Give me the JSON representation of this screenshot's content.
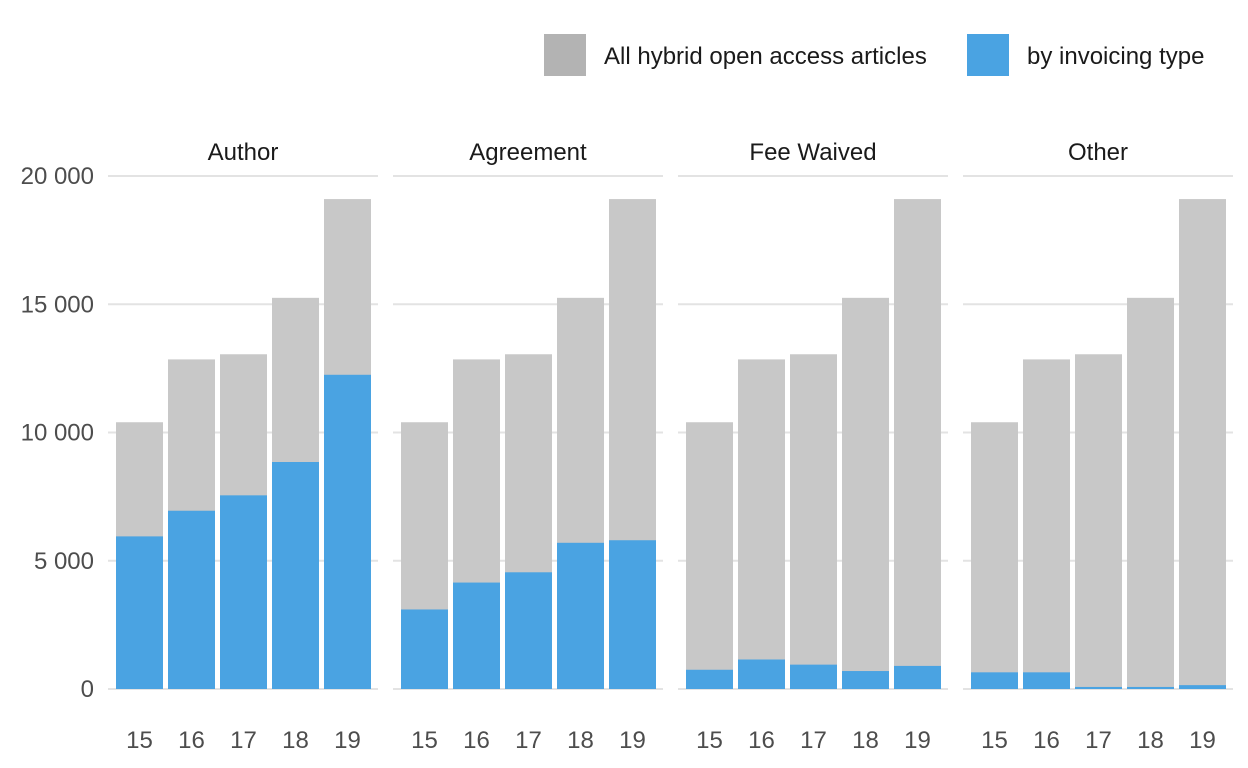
{
  "chart_data": {
    "type": "bar",
    "layout": "faceted-overlay",
    "legend": {
      "position": "top-right",
      "entries": [
        {
          "label": "All hybrid open access articles",
          "color": "#b3b3b3"
        },
        {
          "label": "by invoicing type",
          "color": "#4aa3e2"
        }
      ]
    },
    "grid": true,
    "ylim": [
      0,
      20000
    ],
    "yticks": [
      0,
      5000,
      10000,
      15000,
      20000
    ],
    "ytick_labels": [
      "0",
      "5 000",
      "10 000",
      "15 000",
      "20 000"
    ],
    "categories": [
      "15",
      "16",
      "17",
      "18",
      "19"
    ],
    "total_color": "#c8c8c8",
    "part_color": "#4aa3e2",
    "total": [
      10400,
      12850,
      13050,
      15250,
      19100
    ],
    "facets": [
      {
        "title": "Author",
        "values": [
          5950,
          6950,
          7550,
          8850,
          12250
        ]
      },
      {
        "title": "Agreement",
        "values": [
          3100,
          4150,
          4550,
          5700,
          5800
        ]
      },
      {
        "title": "Fee Waived",
        "values": [
          750,
          1150,
          950,
          700,
          900
        ]
      },
      {
        "title": "Other",
        "values": [
          650,
          650,
          80,
          80,
          150
        ]
      }
    ]
  }
}
